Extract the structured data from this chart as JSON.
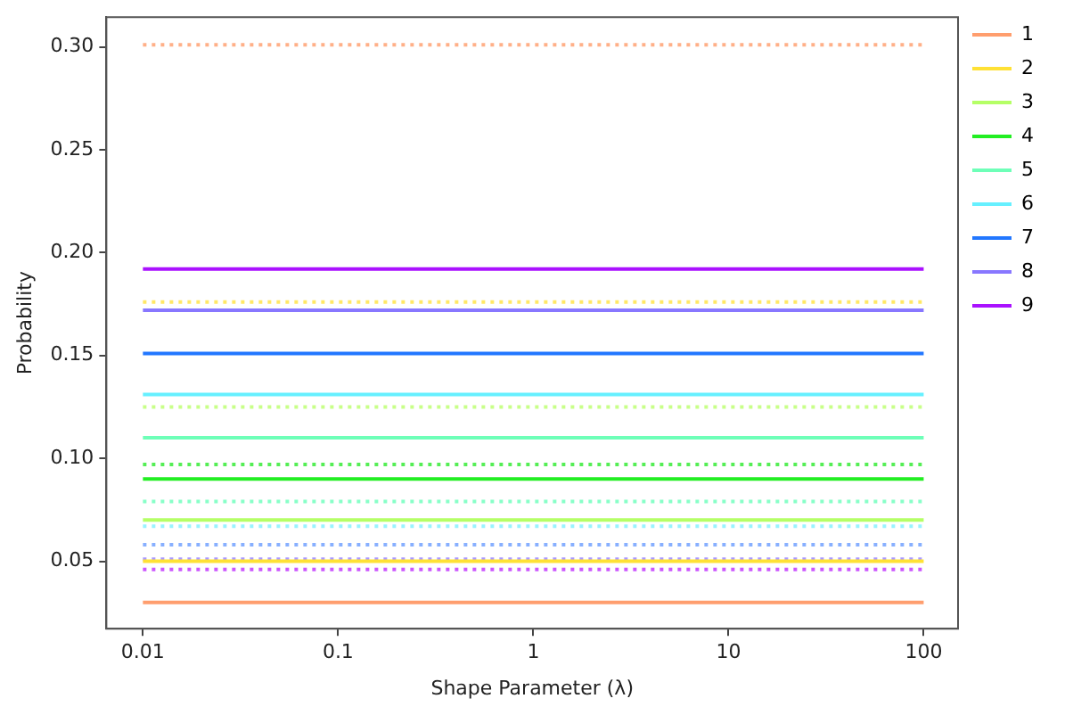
{
  "chart_data": {
    "type": "line",
    "xlabel": "Shape Parameter (λ)",
    "ylabel": "Probability",
    "log": "x",
    "x": [
      0.01,
      100
    ],
    "xlim": [
      0.0065,
      150
    ],
    "xticks": [
      0.01,
      0.1,
      1,
      10,
      100
    ],
    "ylim": [
      0.0172,
      0.3145
    ],
    "yticks": [
      0.05,
      {
        "value": 0.1,
        "label": "0.10"
      },
      0.15,
      {
        "value": 0.2,
        "label": "0.20"
      },
      0.25,
      {
        "value": 0.3,
        "label": "0.30"
      }
    ],
    "grid": false,
    "legend": "top right",
    "marker": "none",
    "series": [
      {
        "name": "1",
        "color": "#ff9e6e",
        "values": [
          0.03,
          0.03
        ],
        "line_style": "solid"
      },
      {
        "name": "2",
        "color": "#ffe135",
        "values": [
          0.05,
          0.05
        ],
        "line_style": "solid"
      },
      {
        "name": "3",
        "color": "#b5ff66",
        "values": [
          0.07,
          0.07
        ],
        "line_style": "solid"
      },
      {
        "name": "4",
        "color": "#22ee22",
        "values": [
          0.09,
          0.09
        ],
        "line_style": "solid"
      },
      {
        "name": "5",
        "color": "#6effb8",
        "values": [
          0.11,
          0.11
        ],
        "line_style": "solid"
      },
      {
        "name": "6",
        "color": "#66f0ff",
        "values": [
          0.131,
          0.131
        ],
        "line_style": "solid"
      },
      {
        "name": "7",
        "color": "#2277ff",
        "values": [
          0.151,
          0.151
        ],
        "line_style": "solid"
      },
      {
        "name": "8",
        "color": "#8877ff",
        "values": [
          0.172,
          0.172
        ],
        "line_style": "solid"
      },
      {
        "name": "9",
        "color": "#aa11ff",
        "values": [
          0.192,
          0.192
        ],
        "line_style": "solid"
      },
      {
        "color": "#ffb088",
        "values": [
          0.301,
          0.301
        ],
        "line_style": "dotted"
      },
      {
        "color": "#ffe866",
        "values": [
          0.176,
          0.176
        ],
        "line_style": "dotted"
      },
      {
        "color": "#c8ff88",
        "values": [
          0.125,
          0.125
        ],
        "line_style": "dotted"
      },
      {
        "color": "#55ee55",
        "values": [
          0.097,
          0.097
        ],
        "line_style": "dotted"
      },
      {
        "color": "#88ffc8",
        "values": [
          0.079,
          0.079
        ],
        "line_style": "dotted"
      },
      {
        "color": "#99f4ff",
        "values": [
          0.067,
          0.067
        ],
        "line_style": "dotted"
      },
      {
        "color": "#88b0ff",
        "values": [
          0.058,
          0.058
        ],
        "line_style": "dotted"
      },
      {
        "color": "#aa99ff",
        "values": [
          0.051,
          0.051
        ],
        "line_style": "dotted"
      },
      {
        "color": "#cc55ff",
        "values": [
          0.046,
          0.046
        ],
        "line_style": "dotted"
      }
    ]
  }
}
